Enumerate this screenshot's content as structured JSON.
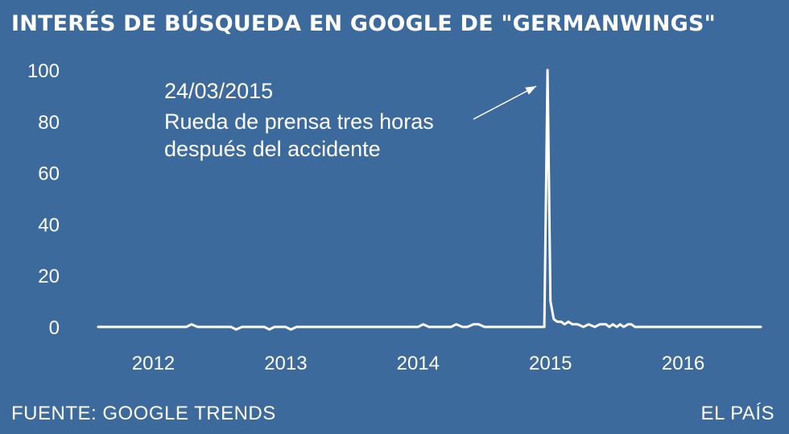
{
  "chart_data": {
    "type": "line",
    "title": "INTERÉS DE BÚSQUEDA EN GOOGLE DE \"GERMANWINGS\"",
    "xlabel": "",
    "ylabel": "",
    "ylim": [
      0,
      100
    ],
    "yticks": [
      0,
      20,
      40,
      60,
      80,
      100
    ],
    "xlim": [
      "2011-11",
      "2016-11"
    ],
    "xticks": [
      "2012",
      "2013",
      "2014",
      "2015",
      "2016"
    ],
    "grid": false,
    "legend": false,
    "line_color": "#ffffff",
    "series": [
      {
        "x": [
          "2011-11-01",
          "2012-01-01",
          "2012-03-01",
          "2012-05-01",
          "2012-07-01",
          "2012-07-15",
          "2012-08-01",
          "2012-10-01",
          "2012-11-01",
          "2012-11-15",
          "2012-12-01",
          "2013-01-01",
          "2013-02-01",
          "2013-02-15",
          "2013-03-01",
          "2013-04-01",
          "2013-04-15",
          "2013-05-01",
          "2013-07-01",
          "2013-10-01",
          "2014-01-01",
          "2014-03-01",
          "2014-04-01",
          "2014-04-15",
          "2014-05-01",
          "2014-07-01",
          "2014-07-15",
          "2014-08-01",
          "2014-08-15",
          "2014-09-01",
          "2014-09-15",
          "2014-10-01",
          "2014-12-01",
          "2015-02-01",
          "2015-03-15",
          "2015-03-24",
          "2015-04-01",
          "2015-04-10",
          "2015-04-20",
          "2015-05-01",
          "2015-05-10",
          "2015-05-20",
          "2015-06-01",
          "2015-06-15",
          "2015-07-01",
          "2015-07-15",
          "2015-08-01",
          "2015-08-15",
          "2015-09-01",
          "2015-09-10",
          "2015-09-20",
          "2015-10-01",
          "2015-10-10",
          "2015-10-20",
          "2015-11-01",
          "2015-11-10",
          "2015-11-20",
          "2015-12-01",
          "2016-01-01",
          "2016-03-01",
          "2016-05-01",
          "2016-07-01",
          "2016-09-01",
          "2016-11-01"
        ],
        "values": [
          0,
          0,
          0,
          0,
          0,
          1,
          0,
          0,
          0,
          -1,
          0,
          0,
          0,
          -1,
          0,
          0,
          -1,
          0,
          0,
          0,
          0,
          0,
          0,
          1,
          0,
          0,
          1,
          0,
          0,
          1,
          1,
          0,
          0,
          0,
          0,
          100,
          10,
          3,
          2,
          2,
          1,
          2,
          1,
          1,
          0,
          1,
          0,
          1,
          1,
          0,
          1,
          0,
          1,
          0,
          1,
          1,
          0,
          0,
          0,
          0,
          0,
          0,
          0,
          0
        ]
      }
    ],
    "annotation": {
      "lines": [
        "24/03/2015",
        "Rueda de prensa tres horas",
        "después del accidente"
      ],
      "points_to": {
        "x": "2015-03-24",
        "y": 100
      }
    }
  },
  "footer": {
    "source": "FUENTE: GOOGLE TRENDS",
    "brand": "EL PAÍS"
  }
}
